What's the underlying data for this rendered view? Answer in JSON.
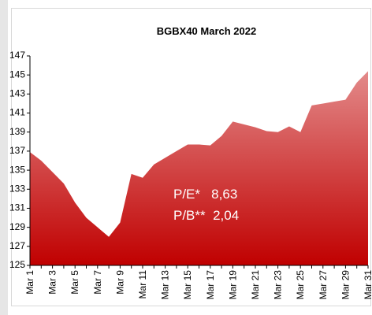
{
  "chart_data": {
    "type": "area",
    "title": "BGBX40  March 2022",
    "categories": [
      "Mar 1",
      null,
      "Mar 3",
      null,
      "Mar 5",
      null,
      "Mar 7",
      null,
      "Mar 9",
      null,
      "Mar 11",
      null,
      "Mar 13",
      null,
      "Mar 15",
      null,
      "Mar 17",
      null,
      "Mar 19",
      null,
      "Mar 21",
      null,
      "Mar 23",
      null,
      "Mar 25",
      null,
      "Mar 27",
      null,
      "Mar 29",
      null,
      "Mar 31"
    ],
    "values": [
      136.9,
      136.0,
      134.8,
      133.6,
      131.6,
      130.0,
      129.0,
      128.0,
      129.5,
      134.6,
      134.2,
      135.6,
      136.3,
      137.0,
      137.7,
      137.7,
      137.6,
      138.6,
      140.1,
      139.8,
      139.5,
      139.1,
      139.0,
      139.6,
      139.0,
      141.8,
      142.0,
      142.2,
      142.4,
      144.2,
      145.4
    ],
    "color_top": "#e38a8a",
    "color_bottom": "#c00000",
    "ylim": [
      125,
      147
    ],
    "yticks": [
      125,
      127,
      129,
      131,
      133,
      135,
      137,
      139,
      141,
      143,
      145,
      147
    ],
    "annotations": [
      "P/E*   8,63",
      "P/B**  2,04"
    ]
  }
}
